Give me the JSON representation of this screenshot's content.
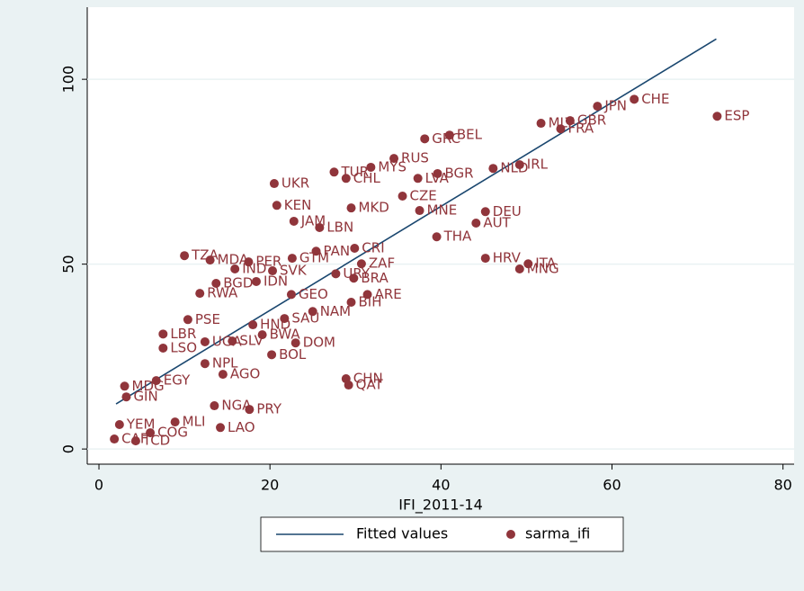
{
  "chart_data": {
    "type": "scatter",
    "x_label": "IFI_2011-14",
    "xlim": [
      -1.37,
      81.3
    ],
    "ylim": [
      -4.1,
      119.5
    ],
    "xticks": [
      0,
      20,
      40,
      60,
      80
    ],
    "yticks": [
      0,
      50,
      100
    ],
    "grid": true,
    "legend": "bottom",
    "series": [
      {
        "name": "Fitted values",
        "type": "line",
        "color": "#1a476f",
        "x": [
          2,
          72.2
        ],
        "values": [
          12.2,
          110.9
        ]
      },
      {
        "name": "sarma_ifi",
        "type": "scatter",
        "color": "#90353b",
        "labels": [
          "CHE",
          "ESP",
          "JPN",
          "GBR",
          "MLT",
          "FRA",
          "GRC",
          "BEL",
          "RUS",
          "MYS",
          "TUR",
          "CHL",
          "LVA",
          "BGR",
          "NLD",
          "IRL",
          "UKR",
          "KEN",
          "MKD",
          "CZE",
          "MNE",
          "DEU",
          "AUT",
          "JAM",
          "LBN",
          "THA",
          "PAN",
          "CRI",
          "TZA",
          "MDA",
          "PER",
          "HRV",
          "ITA",
          "MNG",
          "ZAF",
          "SVK",
          "IND",
          "URY",
          "BRA",
          "GTM",
          "IDN",
          "BGD",
          "RWA",
          "GEO",
          "ARE",
          "BIH",
          "NAM",
          "PSE",
          "SAU",
          "HND",
          "LBR",
          "BWA",
          "UGA",
          "SLV",
          "DOM",
          "LSO",
          "BOL",
          "NPL",
          "AGO",
          "EGY",
          "MDG",
          "CHN",
          "QAT",
          "PRY",
          "NGA",
          "LAO",
          "COG",
          "TCD",
          "CAF",
          "YEM",
          "GIN",
          "MLI"
        ],
        "x": [
          62.6,
          72.3,
          58.3,
          55.1,
          51.7,
          54.0,
          38.1,
          41.0,
          34.5,
          31.8,
          27.5,
          28.9,
          37.3,
          39.6,
          46.1,
          49.2,
          20.5,
          20.8,
          29.5,
          35.5,
          37.5,
          45.2,
          44.1,
          22.8,
          25.8,
          39.5,
          25.4,
          29.9,
          10.0,
          13.0,
          17.5,
          45.2,
          50.2,
          49.2,
          30.7,
          20.3,
          15.9,
          27.7,
          29.8,
          22.6,
          18.4,
          13.7,
          11.8,
          22.5,
          31.4,
          29.5,
          25.0,
          10.4,
          21.7,
          18.0,
          7.5,
          19.1,
          12.4,
          15.6,
          23.0,
          7.5,
          20.2,
          12.4,
          14.5,
          6.7,
          3.0,
          28.9,
          29.2,
          17.6,
          13.5,
          14.2,
          6.0,
          4.3,
          1.8,
          2.4,
          3.2,
          8.9
        ],
        "values": [
          94.6,
          90.0,
          92.7,
          88.8,
          88.1,
          86.6,
          83.9,
          84.9,
          78.6,
          76.2,
          74.9,
          73.2,
          73.2,
          74.5,
          75.9,
          76.9,
          71.8,
          65.9,
          65.2,
          68.4,
          64.5,
          64.2,
          61.1,
          61.6,
          59.9,
          57.4,
          53.5,
          54.3,
          52.3,
          51.1,
          50.6,
          51.6,
          50.1,
          48.7,
          50.1,
          48.2,
          48.7,
          47.4,
          46.2,
          51.6,
          45.3,
          44.8,
          42.1,
          41.8,
          41.8,
          39.7,
          37.2,
          35.0,
          35.3,
          33.6,
          31.1,
          30.9,
          29.0,
          29.2,
          28.7,
          27.3,
          25.5,
          23.1,
          20.2,
          18.5,
          17.0,
          19.0,
          17.3,
          10.7,
          11.7,
          5.8,
          4.4,
          2.2,
          2.7,
          6.6,
          14.1,
          7.3
        ]
      }
    ]
  }
}
